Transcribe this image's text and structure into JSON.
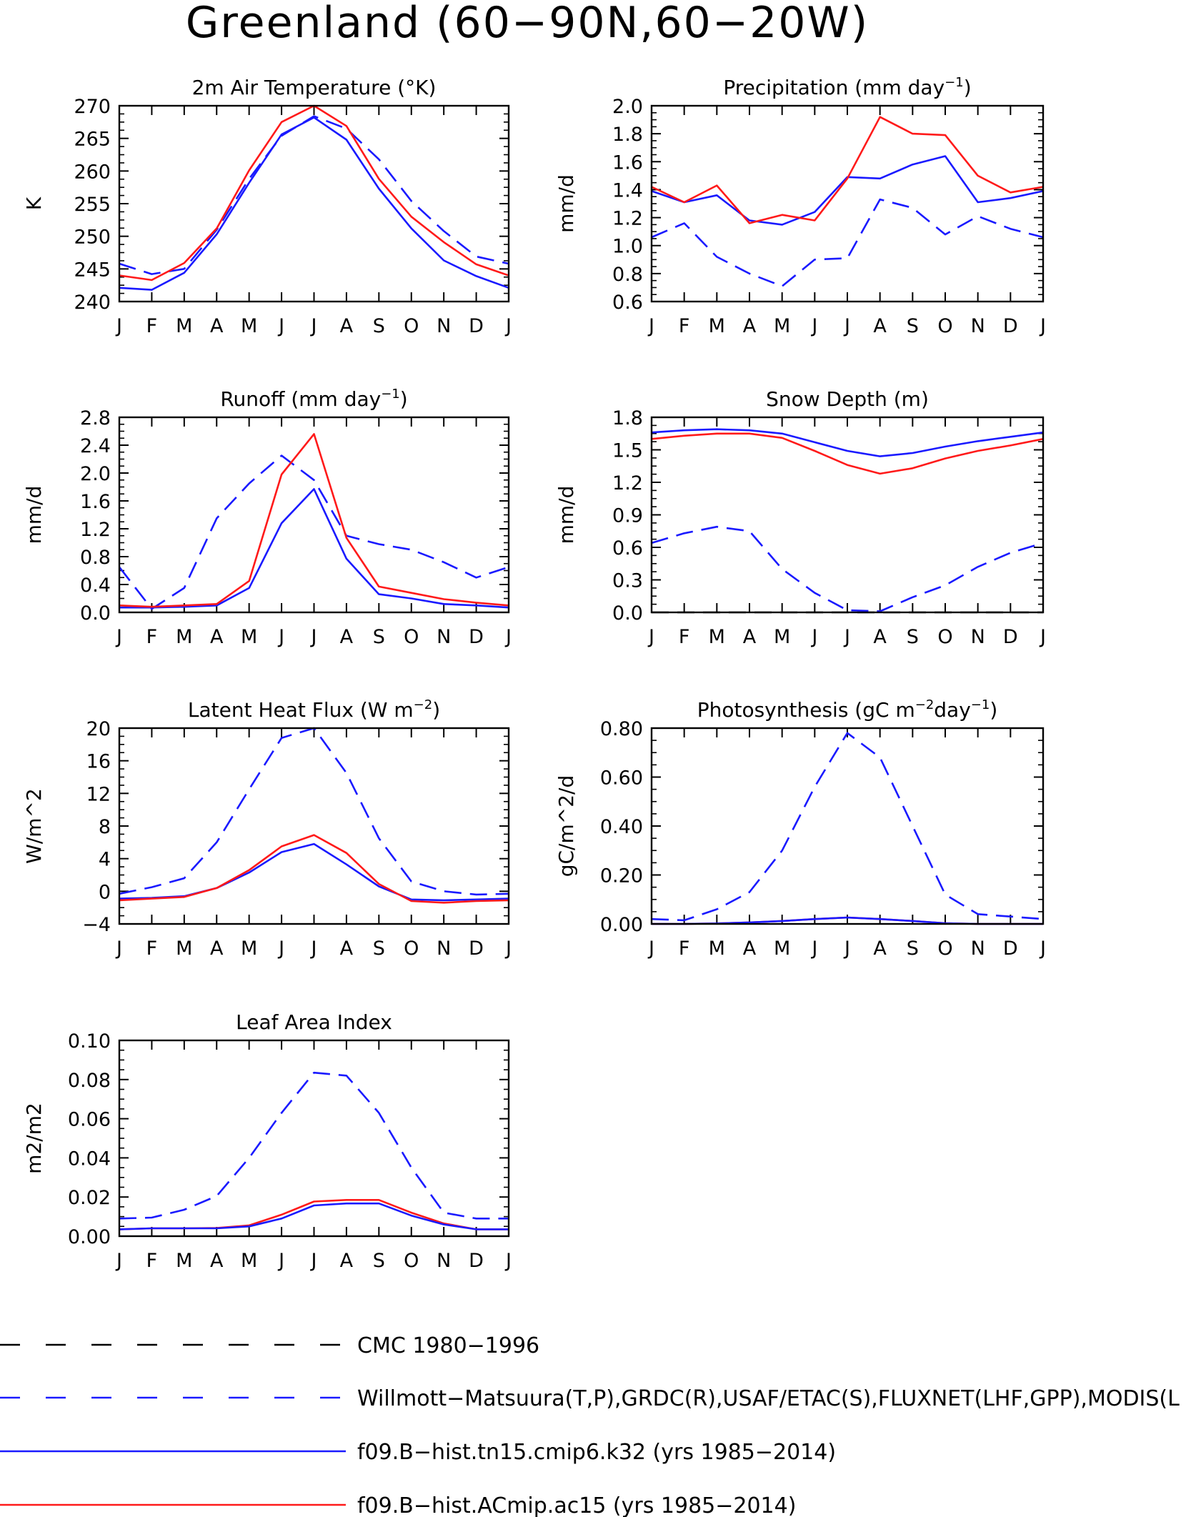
{
  "figure": {
    "title": "Greenland (60-90N,60-20W)"
  },
  "colors": {
    "obs_cmc": "#000000",
    "obs_main": "#1a1aff",
    "model_k32": "#1a1aff",
    "model_ac15": "#ff1a1a"
  },
  "legend": [
    {
      "label": "CMC 1980-1996",
      "color": "#000000",
      "style": "dashed"
    },
    {
      "label": "Willmott-Matsuura(T,P),GRDC(R),USAF/ETAC(S),FLUXNET(LHF,GPP),MODIS(L",
      "color": "#1a1aff",
      "style": "dashed"
    },
    {
      "label": "f09.B-hist.tn15.cmip6.k32 (yrs 1985-2014)",
      "color": "#1a1aff",
      "style": "solid"
    },
    {
      "label": "f09.B-hist.ACmip.ac15 (yrs 1985-2014)",
      "color": "#ff1a1a",
      "style": "solid"
    }
  ],
  "chart_data": [
    {
      "type": "line",
      "title": "2m Air Temperature (°K)",
      "ylabel": "K",
      "ylim": [
        240,
        270
      ],
      "yticks": [
        240,
        245,
        250,
        255,
        260,
        265,
        270
      ],
      "ytick_labels": [
        "240",
        "245",
        "250",
        "255",
        "260",
        "265",
        "270"
      ],
      "categories": [
        "J",
        "F",
        "M",
        "A",
        "M",
        "J",
        "J",
        "A",
        "S",
        "O",
        "N",
        "D",
        "J"
      ],
      "series": [
        {
          "key": "obs",
          "style": "dashed",
          "color": "#1a1aff",
          "values": [
            245.8,
            244.2,
            245.0,
            251.0,
            258.8,
            265.4,
            268.4,
            266.5,
            261.8,
            255.4,
            250.8,
            246.9,
            245.8
          ]
        },
        {
          "key": "k32",
          "style": "solid",
          "color": "#1a1aff",
          "values": [
            242.1,
            241.8,
            244.4,
            250.3,
            258.2,
            265.6,
            268.2,
            264.8,
            257.3,
            251.2,
            246.3,
            243.9,
            242.1
          ]
        },
        {
          "key": "ac15",
          "style": "solid",
          "color": "#ff1a1a",
          "values": [
            244.0,
            243.3,
            245.9,
            251.2,
            260.1,
            267.5,
            270.0,
            266.9,
            258.8,
            253.0,
            249.1,
            245.7,
            244.0
          ]
        }
      ]
    },
    {
      "type": "line",
      "title": "Precipitation (mm day-1)",
      "title_base": "Precipitation (mm day",
      "title_sup": "-1",
      "title_end": ")",
      "ylabel": "mm/d",
      "ylim": [
        0.6,
        2.0
      ],
      "yticks": [
        0.6,
        0.8,
        1.0,
        1.2,
        1.4,
        1.6,
        1.8,
        2.0
      ],
      "ytick_labels": [
        "0.6",
        "0.8",
        "1.0",
        "1.2",
        "1.4",
        "1.6",
        "1.8",
        "2.0"
      ],
      "categories": [
        "J",
        "F",
        "M",
        "A",
        "M",
        "J",
        "J",
        "A",
        "S",
        "O",
        "N",
        "D",
        "J"
      ],
      "series": [
        {
          "key": "obs",
          "style": "dashed",
          "color": "#1a1aff",
          "values": [
            1.06,
            1.16,
            0.92,
            0.8,
            0.71,
            0.9,
            0.91,
            1.33,
            1.27,
            1.08,
            1.21,
            1.12,
            1.06
          ]
        },
        {
          "key": "k32",
          "style": "solid",
          "color": "#1a1aff",
          "values": [
            1.39,
            1.31,
            1.36,
            1.18,
            1.15,
            1.24,
            1.49,
            1.48,
            1.58,
            1.64,
            1.31,
            1.34,
            1.39
          ]
        },
        {
          "key": "ac15",
          "style": "solid",
          "color": "#ff1a1a",
          "values": [
            1.42,
            1.31,
            1.43,
            1.16,
            1.22,
            1.18,
            1.48,
            1.92,
            1.8,
            1.79,
            1.5,
            1.38,
            1.42
          ]
        }
      ]
    },
    {
      "type": "line",
      "title": "Runoff (mm day-1)",
      "title_base": "Runoff (mm day",
      "title_sup": "-1",
      "title_end": ")",
      "ylabel": "mm/d",
      "ylim": [
        0.0,
        2.8
      ],
      "yticks": [
        0.0,
        0.4,
        0.8,
        1.2,
        1.6,
        2.0,
        2.4,
        2.8
      ],
      "ytick_labels": [
        "0.0",
        "0.4",
        "0.8",
        "1.2",
        "1.6",
        "2.0",
        "2.4",
        "2.8"
      ],
      "categories": [
        "J",
        "F",
        "M",
        "A",
        "M",
        "J",
        "J",
        "A",
        "S",
        "O",
        "N",
        "D",
        "J"
      ],
      "series": [
        {
          "key": "obs",
          "style": "dashed",
          "color": "#1a1aff",
          "values": [
            0.65,
            0.05,
            0.35,
            1.35,
            1.85,
            2.25,
            1.9,
            1.1,
            0.98,
            0.9,
            0.72,
            0.5,
            0.65
          ]
        },
        {
          "key": "k32",
          "style": "solid",
          "color": "#1a1aff",
          "values": [
            0.07,
            0.07,
            0.08,
            0.1,
            0.35,
            1.28,
            1.77,
            0.77,
            0.26,
            0.2,
            0.12,
            0.1,
            0.07
          ]
        },
        {
          "key": "ac15",
          "style": "solid",
          "color": "#ff1a1a",
          "values": [
            0.1,
            0.08,
            0.1,
            0.12,
            0.45,
            1.98,
            2.56,
            1.07,
            0.37,
            0.28,
            0.19,
            0.14,
            0.1
          ]
        }
      ]
    },
    {
      "type": "line",
      "title": "Snow Depth (m)",
      "ylabel": "mm/d",
      "ylim": [
        0.0,
        1.8
      ],
      "yticks": [
        0.0,
        0.3,
        0.6,
        0.9,
        1.2,
        1.5,
        1.8
      ],
      "ytick_labels": [
        "0.0",
        "0.3",
        "0.6",
        "0.9",
        "1.2",
        "1.5",
        "1.8"
      ],
      "categories": [
        "J",
        "F",
        "M",
        "A",
        "M",
        "J",
        "J",
        "A",
        "S",
        "O",
        "N",
        "D",
        "J"
      ],
      "series": [
        {
          "key": "cmc",
          "style": "dashed",
          "color": "#000000",
          "values": [
            0.0,
            0.0,
            0.0,
            0.0,
            0.0,
            0.0,
            0.0,
            0.0,
            0.0,
            0.0,
            0.0,
            0.0,
            0.0
          ]
        },
        {
          "key": "obs",
          "style": "dashed",
          "color": "#1a1aff",
          "values": [
            0.64,
            0.73,
            0.79,
            0.75,
            0.4,
            0.18,
            0.02,
            0.01,
            0.14,
            0.25,
            0.42,
            0.55,
            0.64
          ]
        },
        {
          "key": "k32",
          "style": "solid",
          "color": "#1a1aff",
          "values": [
            1.66,
            1.68,
            1.69,
            1.68,
            1.65,
            1.57,
            1.49,
            1.44,
            1.47,
            1.53,
            1.58,
            1.62,
            1.66
          ]
        },
        {
          "key": "ac15",
          "style": "solid",
          "color": "#ff1a1a",
          "values": [
            1.6,
            1.63,
            1.65,
            1.65,
            1.61,
            1.49,
            1.36,
            1.28,
            1.33,
            1.42,
            1.49,
            1.54,
            1.6
          ]
        }
      ]
    },
    {
      "type": "line",
      "title": "Latent Heat Flux (W m-2)",
      "title_base": "Latent Heat Flux (W m",
      "title_sup": "-2",
      "title_end": ")",
      "ylabel": "W/m^2",
      "ylim": [
        -4,
        20
      ],
      "yticks": [
        -4,
        0,
        4,
        8,
        12,
        16,
        20
      ],
      "ytick_labels": [
        "-4",
        "0",
        "4",
        "8",
        "12",
        "16",
        "20"
      ],
      "categories": [
        "J",
        "F",
        "M",
        "A",
        "M",
        "J",
        "J",
        "A",
        "S",
        "O",
        "N",
        "D",
        "J"
      ],
      "series": [
        {
          "key": "obs",
          "style": "dashed",
          "color": "#1a1aff",
          "values": [
            -0.3,
            0.5,
            1.6,
            6.0,
            12.5,
            18.8,
            20.0,
            14.5,
            6.5,
            1.2,
            0.0,
            -0.4,
            -0.3
          ]
        },
        {
          "key": "k32",
          "style": "solid",
          "color": "#1a1aff",
          "values": [
            -0.9,
            -0.8,
            -0.6,
            0.4,
            2.3,
            4.8,
            5.8,
            3.3,
            0.6,
            -1.0,
            -1.1,
            -1.0,
            -0.9
          ]
        },
        {
          "key": "ac15",
          "style": "solid",
          "color": "#ff1a1a",
          "values": [
            -1.1,
            -0.9,
            -0.7,
            0.4,
            2.6,
            5.5,
            6.9,
            4.7,
            0.9,
            -1.2,
            -1.4,
            -1.2,
            -1.1
          ]
        }
      ]
    },
    {
      "type": "line",
      "title": "Photosynthesis (gC m-2day-1)",
      "title_base": "Photosynthesis (gC m",
      "title_sup": "-2",
      "title_mid": "day",
      "title_sup2": "-1",
      "title_end": ")",
      "ylabel": "gC/m^2/d",
      "ylim": [
        0.0,
        0.8
      ],
      "yticks": [
        0.0,
        0.2,
        0.4,
        0.6,
        0.8
      ],
      "ytick_labels": [
        "0.00",
        "0.20",
        "0.40",
        "0.60",
        "0.80"
      ],
      "categories": [
        "J",
        "F",
        "M",
        "A",
        "M",
        "J",
        "J",
        "A",
        "S",
        "O",
        "N",
        "D",
        "J"
      ],
      "series": [
        {
          "key": "obs",
          "style": "dashed",
          "color": "#1a1aff",
          "values": [
            0.02,
            0.015,
            0.06,
            0.13,
            0.3,
            0.56,
            0.78,
            0.68,
            0.4,
            0.12,
            0.04,
            0.03,
            0.02
          ]
        },
        {
          "key": "ac15",
          "style": "solid",
          "color": "#ff1a1a",
          "values": [
            0.0,
            0.0,
            0.002,
            0.006,
            0.012,
            0.02,
            0.026,
            0.02,
            0.012,
            0.003,
            0.0,
            0.0,
            0.0
          ]
        },
        {
          "key": "k32",
          "style": "solid",
          "color": "#1a1aff",
          "values": [
            0.0,
            0.0,
            0.002,
            0.006,
            0.012,
            0.02,
            0.026,
            0.02,
            0.012,
            0.003,
            0.0,
            0.0,
            0.0
          ]
        }
      ]
    },
    {
      "type": "line",
      "title": "Leaf Area Index",
      "ylabel": "m2/m2",
      "ylim": [
        0.0,
        0.1
      ],
      "yticks": [
        0.0,
        0.02,
        0.04,
        0.06,
        0.08,
        0.1
      ],
      "ytick_labels": [
        "0.00",
        "0.02",
        "0.04",
        "0.06",
        "0.08",
        "0.10"
      ],
      "categories": [
        "J",
        "F",
        "M",
        "A",
        "M",
        "J",
        "J",
        "A",
        "S",
        "O",
        "N",
        "D",
        "J"
      ],
      "series": [
        {
          "key": "obs",
          "style": "dashed",
          "color": "#1a1aff",
          "values": [
            0.009,
            0.0095,
            0.0135,
            0.0205,
            0.04,
            0.063,
            0.0835,
            0.082,
            0.063,
            0.035,
            0.012,
            0.009,
            0.009
          ]
        },
        {
          "key": "ac15",
          "style": "solid",
          "color": "#ff1a1a",
          "values": [
            0.0035,
            0.004,
            0.004,
            0.0042,
            0.0055,
            0.011,
            0.0177,
            0.0185,
            0.0185,
            0.012,
            0.0065,
            0.0035,
            0.0035
          ]
        },
        {
          "key": "k32",
          "style": "solid",
          "color": "#1a1aff",
          "values": [
            0.0035,
            0.004,
            0.004,
            0.004,
            0.005,
            0.009,
            0.0157,
            0.0167,
            0.0167,
            0.0105,
            0.006,
            0.0035,
            0.0035
          ]
        }
      ]
    }
  ]
}
